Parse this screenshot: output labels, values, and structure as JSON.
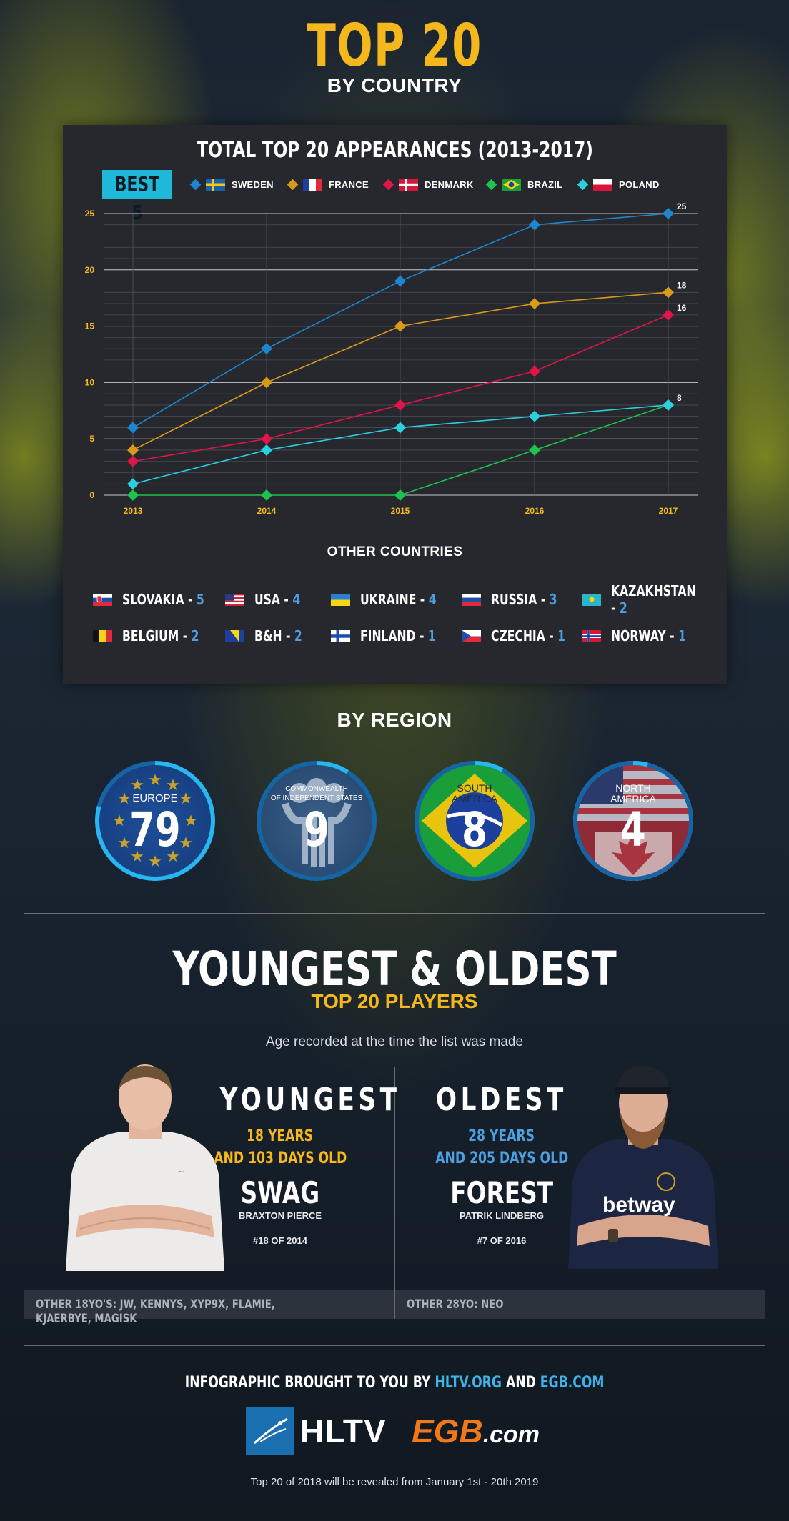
{
  "header": {
    "title": "TOP 20",
    "subtitle": "BY COUNTRY"
  },
  "chart_data": {
    "type": "line",
    "title": "TOTAL TOP 20 APPEARANCES (2013-2017)",
    "badge": "BEST 5",
    "categories": [
      "2013",
      "2014",
      "2015",
      "2016",
      "2017"
    ],
    "ylim": [
      0,
      25
    ],
    "yticks": [
      "0",
      "5",
      "10",
      "15",
      "20",
      "25"
    ],
    "grid": true,
    "legend_position": "top",
    "series": [
      {
        "name": "SWEDEN",
        "color": "#1d86cf",
        "flag": "sweden",
        "values": [
          6,
          13,
          19,
          24,
          25
        ],
        "end_label": "25"
      },
      {
        "name": "FRANCE",
        "color": "#d89a19",
        "flag": "france",
        "values": [
          4,
          10,
          15,
          17,
          18
        ],
        "end_label": "18"
      },
      {
        "name": "DENMARK",
        "color": "#e0154a",
        "flag": "denmark",
        "values": [
          3,
          5,
          8,
          11,
          16
        ],
        "end_label": "16"
      },
      {
        "name": "BRAZIL",
        "color": "#1fc24a",
        "flag": "brazil",
        "values": [
          0,
          0,
          0,
          4,
          8
        ],
        "end_label": ""
      },
      {
        "name": "POLAND",
        "color": "#2ad0e0",
        "flag": "poland",
        "values": [
          1,
          4,
          6,
          7,
          8
        ],
        "end_label": "8"
      }
    ]
  },
  "other_countries": {
    "title": "OTHER COUNTRIES",
    "items": [
      {
        "name": "SLOVAKIA",
        "count": "5",
        "flag": "slovakia"
      },
      {
        "name": "USA",
        "count": "4",
        "flag": "usa"
      },
      {
        "name": "UKRAINE",
        "count": "4",
        "flag": "ukraine"
      },
      {
        "name": "RUSSIA",
        "count": "3",
        "flag": "russia"
      },
      {
        "name": "KAZAKHSTAN",
        "count": "2",
        "flag": "kazakhstan"
      },
      {
        "name": "BELGIUM",
        "count": "2",
        "flag": "belgium"
      },
      {
        "name": "B&H",
        "count": "2",
        "flag": "bih"
      },
      {
        "name": "FINLAND",
        "count": "1",
        "flag": "finland"
      },
      {
        "name": "CZECHIA",
        "count": "1",
        "flag": "czechia"
      },
      {
        "name": "NORWAY",
        "count": "1",
        "flag": "norway"
      }
    ]
  },
  "region": {
    "title": "BY REGION",
    "items": [
      {
        "label": "EUROPE",
        "label2": "",
        "value": "79",
        "share": 0.79
      },
      {
        "label": "COMMONWEALTH",
        "label2": "OF INDEPENDENT STATES",
        "value": "9",
        "share": 0.09
      },
      {
        "label": "SOUTH",
        "label2": "AMERICA",
        "value": "8",
        "share": 0.08
      },
      {
        "label": "NORTH",
        "label2": "AMERICA",
        "value": "4",
        "share": 0.04
      }
    ]
  },
  "youngest_oldest": {
    "title": "YOUNGEST & OLDEST",
    "subtitle": "TOP 20 PLAYERS",
    "note": "Age recorded at the time the list was made",
    "youngest": {
      "heading": "YOUNGEST",
      "age_line1": "18 YEARS",
      "age_line2": "AND 103 DAYS OLD",
      "nick": "SWAG",
      "real_name": "BRAXTON PIERCE",
      "rank": "#18 OF 2014",
      "others": "OTHER 18YO'S: JW, KENNYS, XYP9X, FLAMIE, KJAERBYE, MAGISK"
    },
    "oldest": {
      "heading": "OLDEST",
      "age_line1": "28 YEARS",
      "age_line2": "AND 205 DAYS OLD",
      "nick": "FOREST",
      "real_name": "PATRIK LINDBERG",
      "rank": "#7 OF 2016",
      "others": "OTHER 28YO: NEO",
      "shirt_text": "betway"
    }
  },
  "footer": {
    "credits_prefix": "INFOGRAPHIC BROUGHT TO YOU BY ",
    "credits_link1": "HLTV.ORG",
    "credits_mid": " AND ",
    "credits_link2": "EGB.COM",
    "logo1": "HLTV",
    "logo2_main": "EGB",
    "logo2_suffix": ".com",
    "reveal": "Top 20 of 2018 will be revealed from January 1st - 20th 2019"
  },
  "colors": {
    "gold": "#f5b81c",
    "accent_blue": "#1fb8d9",
    "panel": "#26282e",
    "highlight_blue": "#4e9fe0"
  }
}
